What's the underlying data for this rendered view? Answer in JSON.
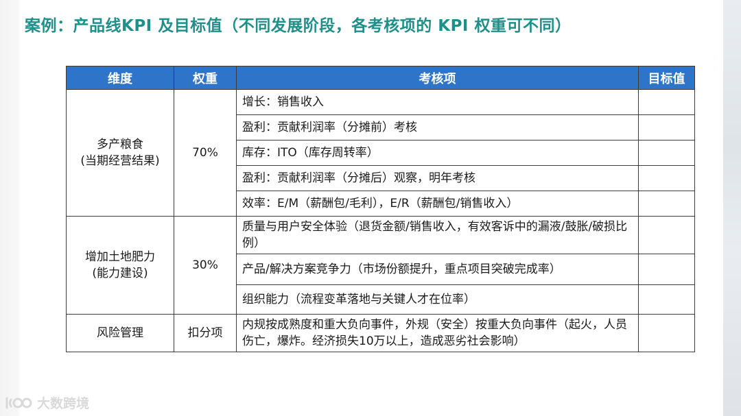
{
  "title": "案例：产品线KPI 及目标值（不同发展阶段，各考核项的 KPI 权重可不同）",
  "table": {
    "headers": {
      "dimension": "维度",
      "weight": "权重",
      "items": "考核项",
      "target": "目标值"
    },
    "groups": [
      {
        "dimension_line1": "多产粮食",
        "dimension_line2": "(当期经营结果)",
        "weight": "70%",
        "items": [
          "增长：销售收入",
          "盈利：贡献利润率（分摊前）考核",
          "库存：ITO（库存周转率）",
          "盈利：贡献利润率（分摊后）观察，明年考核",
          "效率：E/M（薪酬包/毛利），E/R（薪酬包/销售收入）"
        ]
      },
      {
        "dimension_line1": "增加土地肥力",
        "dimension_line2": "(能力建设)",
        "weight": "30%",
        "items": [
          "质量与用户安全体验（退货金额/销售收入，有效客诉中的漏液/鼓胀/破损比例）",
          "产品/解决方案竞争力（市场份额提升，重点项目突破完成率）",
          "组织能力（流程变革落地与关键人才在位率）"
        ]
      },
      {
        "dimension_line1": "风险管理",
        "weight": "扣分项",
        "items": [
          "内规按成熟度和重大负向事件，外规（安全）按重大负向事件（起火，人员伤亡，爆炸。经济损失10万以上，造成恶劣社会影响）"
        ]
      }
    ]
  },
  "watermark": "大数跨境",
  "colors": {
    "title": "#1f8f8a",
    "header_bg": "#2e74c9",
    "header_text": "#ffffff"
  }
}
